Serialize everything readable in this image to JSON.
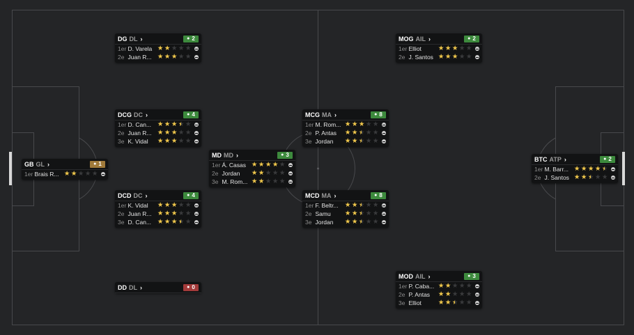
{
  "pitch": {
    "colors": {
      "background": "#242527",
      "lines": "#4a4b4e"
    }
  },
  "colors": {
    "star_filled": "#f2c94c",
    "star_empty": "#3a3b3d",
    "badge_green": "#3d8a3d",
    "badge_gold": "#a07a3a",
    "badge_red": "#a33a3a"
  },
  "positions": [
    {
      "id": "dg",
      "pos": "DG",
      "role": "DL",
      "count": "2",
      "badge": "green",
      "players": [
        {
          "rank": "1er",
          "name": "D. Varela",
          "stars": 2
        },
        {
          "rank": "2e",
          "name": "Juan R...",
          "stars": 3
        }
      ]
    },
    {
      "id": "mog",
      "pos": "MOG",
      "role": "AIL",
      "count": "2",
      "badge": "green",
      "players": [
        {
          "rank": "1er",
          "name": "Elliot",
          "stars": 3
        },
        {
          "rank": "2e",
          "name": "J. Santos",
          "stars": 3
        }
      ]
    },
    {
      "id": "dcg",
      "pos": "DCG",
      "role": "DC",
      "count": "4",
      "badge": "green",
      "players": [
        {
          "rank": "1er",
          "name": "D. Can...",
          "stars": 3.5
        },
        {
          "rank": "2e",
          "name": "Juan R...",
          "stars": 3
        },
        {
          "rank": "3e",
          "name": "K. Vidal",
          "stars": 3
        }
      ]
    },
    {
      "id": "mcg",
      "pos": "MCG",
      "role": "MA",
      "count": "8",
      "badge": "green",
      "players": [
        {
          "rank": "1er",
          "name": "M. Rom...",
          "stars": 3
        },
        {
          "rank": "2e",
          "name": "P. Antas",
          "stars": 2.5
        },
        {
          "rank": "3e",
          "name": "Jordan",
          "stars": 2.5
        }
      ]
    },
    {
      "id": "gb",
      "pos": "GB",
      "role": "GL",
      "count": "1",
      "badge": "gold",
      "players": [
        {
          "rank": "1er",
          "name": "Brais R...",
          "stars": 2
        }
      ]
    },
    {
      "id": "md",
      "pos": "MD",
      "role": "MD",
      "count": "3",
      "badge": "green",
      "players": [
        {
          "rank": "1er",
          "name": "Á. Casas",
          "stars": 4
        },
        {
          "rank": "2e",
          "name": "Jordan",
          "stars": 2
        },
        {
          "rank": "3e",
          "name": "M. Rom...",
          "stars": 2
        }
      ]
    },
    {
      "id": "btc",
      "pos": "BTC",
      "role": "ATP",
      "count": "2",
      "badge": "green",
      "players": [
        {
          "rank": "1er",
          "name": "M. Barr...",
          "stars": 4.5
        },
        {
          "rank": "2e",
          "name": "J. Santos",
          "stars": 2.5
        }
      ]
    },
    {
      "id": "dcd",
      "pos": "DCD",
      "role": "DC",
      "count": "4",
      "badge": "green",
      "players": [
        {
          "rank": "1er",
          "name": "K. Vidal",
          "stars": 3
        },
        {
          "rank": "2e",
          "name": "Juan R...",
          "stars": 3
        },
        {
          "rank": "3e",
          "name": "D. Can...",
          "stars": 3.5
        }
      ]
    },
    {
      "id": "mcd",
      "pos": "MCD",
      "role": "MA",
      "count": "8",
      "badge": "green",
      "players": [
        {
          "rank": "1er",
          "name": "F. Beltr...",
          "stars": 2.5
        },
        {
          "rank": "2e",
          "name": "Samu",
          "stars": 2.5
        },
        {
          "rank": "3e",
          "name": "Jordan",
          "stars": 2.5
        }
      ]
    },
    {
      "id": "dd",
      "pos": "DD",
      "role": "DL",
      "count": "0",
      "badge": "red",
      "players": []
    },
    {
      "id": "mod",
      "pos": "MOD",
      "role": "AIL",
      "count": "3",
      "badge": "green",
      "players": [
        {
          "rank": "1er",
          "name": "P. Caba...",
          "stars": 2
        },
        {
          "rank": "2e",
          "name": "P. Antas",
          "stars": 2
        },
        {
          "rank": "3e",
          "name": "Elliot",
          "stars": 2.5
        }
      ]
    }
  ]
}
